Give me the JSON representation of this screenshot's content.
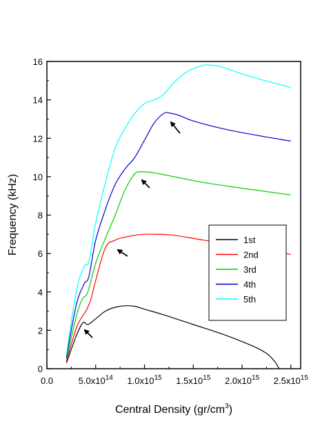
{
  "chart_data": {
    "type": "line",
    "title": "",
    "xlabel": "Central Density (gr/cm",
    "xlabel_exp": "3",
    "xlabel_close": ")",
    "ylabel": "Frequency (kHz)",
    "xlim": [
      0,
      2600000000000000.0
    ],
    "ylim": [
      0,
      16
    ],
    "x_ticks": [
      {
        "value": 0,
        "mant": "0.0",
        "exp": ""
      },
      {
        "value": 500000000000000.0,
        "mant": "5.0x10",
        "exp": "14"
      },
      {
        "value": 1000000000000000.0,
        "mant": "1.0x10",
        "exp": "15"
      },
      {
        "value": 1500000000000000.0,
        "mant": "1.5x10",
        "exp": "15"
      },
      {
        "value": 2000000000000000.0,
        "mant": "2.0x10",
        "exp": "15"
      },
      {
        "value": 2500000000000000.0,
        "mant": "2.5x10",
        "exp": "15"
      }
    ],
    "y_ticks": [
      0,
      2,
      4,
      6,
      8,
      10,
      12,
      14,
      16
    ],
    "grid": false,
    "legend_position": "right-middle",
    "series": [
      {
        "name": "1st",
        "color": "#000000",
        "x": [
          200000000000000.0,
          300000000000000.0,
          370000000000000.0,
          420000000000000.0,
          500000000000000.0,
          600000000000000.0,
          700000000000000.0,
          800000000000000.0,
          900000000000000.0,
          1000000000000000.0,
          1200000000000000.0,
          1500000000000000.0,
          1800000000000000.0,
          2100000000000000.0,
          2250000000000000.0,
          2330000000000000.0,
          2380000000000000.0
        ],
        "y": [
          0.3,
          1.7,
          2.4,
          2.3,
          2.6,
          3.0,
          3.2,
          3.28,
          3.25,
          3.1,
          2.8,
          2.3,
          1.8,
          1.2,
          0.8,
          0.4,
          0.0
        ]
      },
      {
        "name": "2nd",
        "color": "#ff0000",
        "x": [
          200000000000000.0,
          300000000000000.0,
          360000000000000.0,
          400000000000000.0,
          450000000000000.0,
          500000000000000.0,
          600000000000000.0,
          700000000000000.0,
          800000000000000.0,
          900000000000000.0,
          1000000000000000.0,
          1100000000000000.0,
          1300000000000000.0,
          1600000000000000.0,
          2000000000000000.0,
          2500000000000000.0
        ],
        "y": [
          0.4,
          2.1,
          2.7,
          3.0,
          3.6,
          4.6,
          6.3,
          6.7,
          6.85,
          6.95,
          7.0,
          7.0,
          6.95,
          6.7,
          6.4,
          5.95
        ]
      },
      {
        "name": "3rd",
        "color": "#00cc00",
        "x": [
          200000000000000.0,
          300000000000000.0,
          360000000000000.0,
          420000000000000.0,
          500000000000000.0,
          600000000000000.0,
          700000000000000.0,
          800000000000000.0,
          900000000000000.0,
          960000000000000.0,
          1000000000000000.0,
          1100000000000000.0,
          1300000000000000.0,
          1600000000000000.0,
          2000000000000000.0,
          2500000000000000.0
        ],
        "y": [
          0.5,
          2.7,
          3.6,
          4.0,
          5.5,
          6.8,
          8.0,
          9.3,
          10.15,
          10.25,
          10.25,
          10.2,
          10.0,
          9.7,
          9.4,
          9.05
        ]
      },
      {
        "name": "4th",
        "color": "#0000cc",
        "x": [
          200000000000000.0,
          300000000000000.0,
          380000000000000.0,
          430000000000000.0,
          500000000000000.0,
          600000000000000.0,
          700000000000000.0,
          800000000000000.0,
          900000000000000.0,
          1000000000000000.0,
          1100000000000000.0,
          1200000000000000.0,
          1270000000000000.0,
          1350000000000000.0,
          1500000000000000.0,
          1800000000000000.0,
          2100000000000000.0,
          2500000000000000.0
        ],
        "y": [
          0.6,
          3.3,
          4.4,
          4.8,
          6.7,
          8.3,
          9.6,
          10.4,
          11.0,
          11.9,
          12.8,
          13.3,
          13.3,
          13.2,
          12.9,
          12.5,
          12.2,
          11.85
        ]
      },
      {
        "name": "5th",
        "color": "#00ffff",
        "x": [
          200000000000000.0,
          300000000000000.0,
          380000000000000.0,
          430000000000000.0,
          500000000000000.0,
          600000000000000.0,
          700000000000000.0,
          800000000000000.0,
          900000000000000.0,
          1000000000000000.0,
          1100000000000000.0,
          1200000000000000.0,
          1300000000000000.0,
          1450000000000000.0,
          1600000000000000.0,
          1700000000000000.0,
          1800000000000000.0,
          2000000000000000.0,
          2200000000000000.0,
          2500000000000000.0
        ],
        "y": [
          0.7,
          4.0,
          5.3,
          5.6,
          7.6,
          9.7,
          11.5,
          12.5,
          13.3,
          13.8,
          14.0,
          14.3,
          14.9,
          15.5,
          15.8,
          15.8,
          15.7,
          15.35,
          15.05,
          14.65
        ]
      }
    ]
  }
}
